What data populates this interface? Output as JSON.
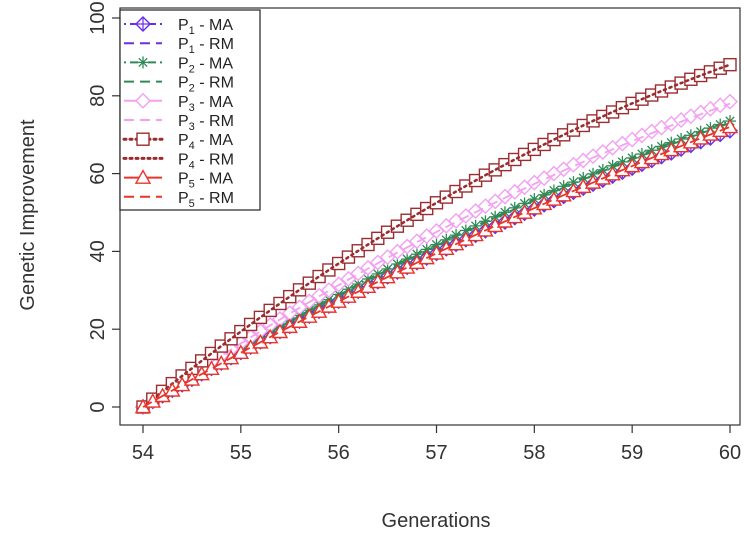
{
  "chart_data": {
    "type": "line",
    "xlabel": "Generations",
    "ylabel": "Genetic Improvement",
    "xlim": [
      54,
      60
    ],
    "ylim": [
      0,
      100
    ],
    "x_ticks": [
      54,
      55,
      56,
      57,
      58,
      59,
      60
    ],
    "y_ticks": [
      0,
      20,
      40,
      60,
      80,
      100
    ],
    "x_tick_labels": [
      "54",
      "55",
      "56",
      "57",
      "58",
      "59",
      "60"
    ],
    "y_tick_labels": [
      "0",
      "20",
      "40",
      "60",
      "80",
      "100"
    ],
    "grid": false,
    "legend_position": "top-left",
    "points_per_series": 61,
    "series": [
      {
        "name": "P1 - MA",
        "label_main": "P",
        "label_sub": "1",
        "label_rest": " - MA",
        "color": "#6a2ee6",
        "line": "dotdash",
        "marker": "diamond-plus",
        "y_end": 71.0,
        "curve": 4.0
      },
      {
        "name": "P1 - RM",
        "label_main": "P",
        "label_sub": "1",
        "label_rest": " - RM",
        "color": "#6a2ee6",
        "line": "dash",
        "marker": "none",
        "y_end": 71.0,
        "curve": 4.0
      },
      {
        "name": "P2 - MA",
        "label_main": "P",
        "label_sub": "2",
        "label_rest": " - MA",
        "color": "#2e8b57",
        "line": "dotdash",
        "marker": "asterisk",
        "y_end": 73.5,
        "curve": 5.0
      },
      {
        "name": "P2 - RM",
        "label_main": "P",
        "label_sub": "2",
        "label_rest": " - RM",
        "color": "#2e8b57",
        "line": "dash",
        "marker": "none",
        "y_end": 73.0,
        "curve": 5.0
      },
      {
        "name": "P3 - MA",
        "label_main": "P",
        "label_sub": "3",
        "label_rest": " - MA",
        "color": "#f3a0f3",
        "line": "solid",
        "marker": "diamond",
        "y_end": 78.5,
        "curve": 6.0
      },
      {
        "name": "P3 - RM",
        "label_main": "P",
        "label_sub": "3",
        "label_rest": " - RM",
        "color": "#f3a0f3",
        "line": "dash",
        "marker": "none",
        "y_end": 78.0,
        "curve": 6.0
      },
      {
        "name": "P4 - MA",
        "label_main": "P",
        "label_sub": "4",
        "label_rest": " - MA",
        "color": "#9b2d30",
        "line": "dot",
        "marker": "square",
        "y_end": 88.0,
        "curve": 8.5
      },
      {
        "name": "P4 - RM",
        "label_main": "P",
        "label_sub": "4",
        "label_rest": " - RM",
        "color": "#9b2d30",
        "line": "dot",
        "marker": "none",
        "y_end": 88.0,
        "curve": 8.5
      },
      {
        "name": "P5 - MA",
        "label_main": "P",
        "label_sub": "5",
        "label_rest": " - MA",
        "color": "#e8352c",
        "line": "solid",
        "marker": "triangle",
        "y_end": 72.0,
        "curve": 3.5
      },
      {
        "name": "P5 - RM",
        "label_main": "P",
        "label_sub": "5",
        "label_rest": " - RM",
        "color": "#e8352c",
        "line": "dash",
        "marker": "none",
        "y_end": 72.0,
        "curve": 3.5
      }
    ]
  }
}
